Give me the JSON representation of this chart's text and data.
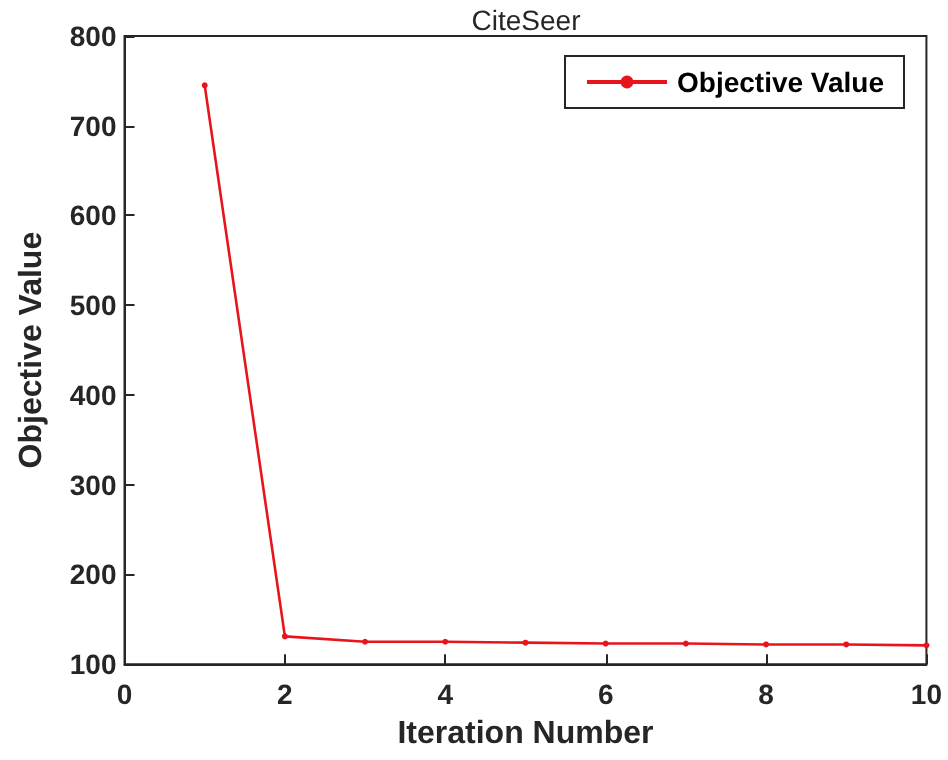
{
  "chart_data": {
    "type": "line",
    "title": "CiteSeer",
    "xlabel": "Iteration Number",
    "ylabel": "Objective Value",
    "x": [
      1,
      2,
      3,
      4,
      5,
      6,
      7,
      8,
      9,
      10
    ],
    "series": [
      {
        "name": "Objective Value",
        "color": "#e8141c",
        "values": [
          745,
          131,
          125,
          125,
          124,
          123,
          123,
          122,
          122,
          121
        ]
      }
    ],
    "xlim": [
      0,
      10
    ],
    "xticks": [
      0,
      2,
      4,
      6,
      8,
      10
    ],
    "ylim": [
      100,
      800
    ],
    "yticks": [
      100,
      200,
      300,
      400,
      500,
      600,
      700,
      800
    ],
    "grid": false,
    "legend": "top right",
    "marker": "circle",
    "line_style": "solid"
  }
}
